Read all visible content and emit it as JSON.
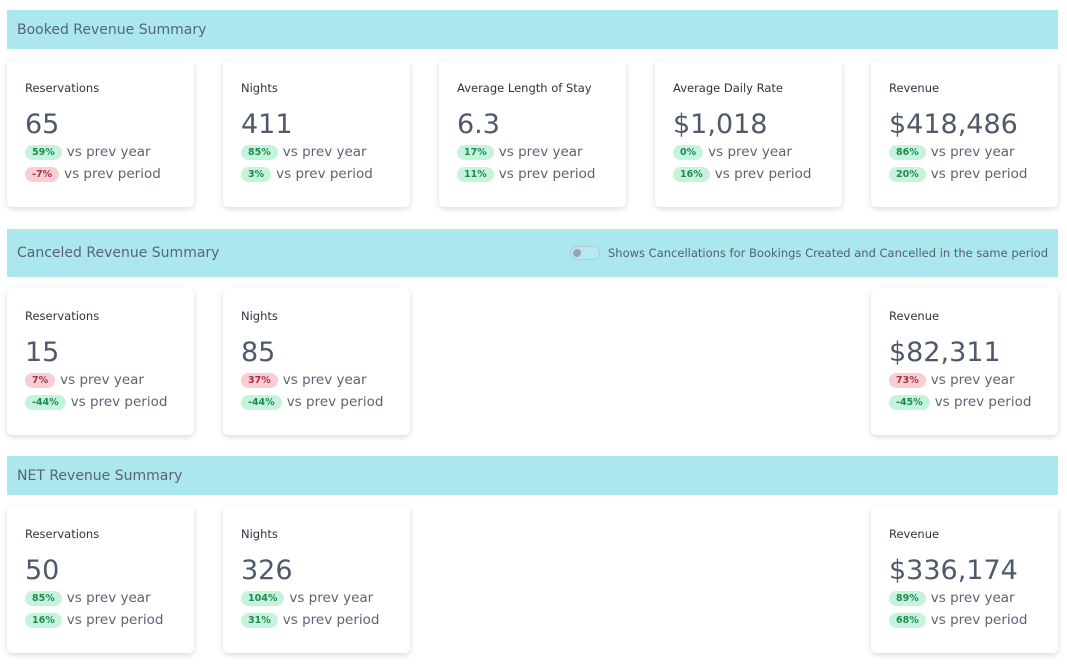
{
  "sections": [
    {
      "title": "Booked Revenue Summary",
      "cards": [
        {
          "label": "Reservations",
          "value": "65",
          "yoy": "59%",
          "yoy_status": "positive",
          "pop": "-7%",
          "pop_status": "negative"
        },
        {
          "label": "Nights",
          "value": "411",
          "yoy": "85%",
          "yoy_status": "positive",
          "pop": "3%",
          "pop_status": "positive"
        },
        {
          "label": "Average Length of Stay",
          "value": "6.3",
          "yoy": "17%",
          "yoy_status": "positive",
          "pop": "11%",
          "pop_status": "positive"
        },
        {
          "label": "Average Daily Rate",
          "value": "$1,018",
          "yoy": "0%",
          "yoy_status": "positive",
          "pop": "16%",
          "pop_status": "positive"
        },
        {
          "label": "Revenue",
          "value": "$418,486",
          "yoy": "86%",
          "yoy_status": "positive",
          "pop": "20%",
          "pop_status": "positive"
        }
      ]
    },
    {
      "title": "Canceled Revenue Summary",
      "toggle": {
        "label": "Shows Cancellations for Bookings Created and Cancelled in the same period",
        "on": false
      },
      "cards": [
        {
          "label": "Reservations",
          "value": "15",
          "yoy": "7%",
          "yoy_status": "negative",
          "pop": "-44%",
          "pop_status": "positive"
        },
        {
          "label": "Nights",
          "value": "85",
          "yoy": "37%",
          "yoy_status": "negative",
          "pop": "-44%",
          "pop_status": "positive"
        },
        {
          "label": "Revenue",
          "value": "$82,311",
          "yoy": "73%",
          "yoy_status": "negative",
          "pop": "-45%",
          "pop_status": "positive"
        }
      ]
    },
    {
      "title": "NET Revenue Summary",
      "cards": [
        {
          "label": "Reservations",
          "value": "50",
          "yoy": "85%",
          "yoy_status": "positive",
          "pop": "16%",
          "pop_status": "positive"
        },
        {
          "label": "Nights",
          "value": "326",
          "yoy": "104%",
          "yoy_status": "positive",
          "pop": "31%",
          "pop_status": "positive"
        },
        {
          "label": "Revenue",
          "value": "$336,174",
          "yoy": "89%",
          "yoy_status": "positive",
          "pop": "68%",
          "pop_status": "positive"
        }
      ]
    }
  ],
  "labels": {
    "yoy": "vs prev year",
    "pop": "vs prev period"
  },
  "colors": {
    "header_bg": "#aae7ef",
    "positive_bg": "#c6f3dc",
    "negative_bg": "#f8cdd3"
  }
}
